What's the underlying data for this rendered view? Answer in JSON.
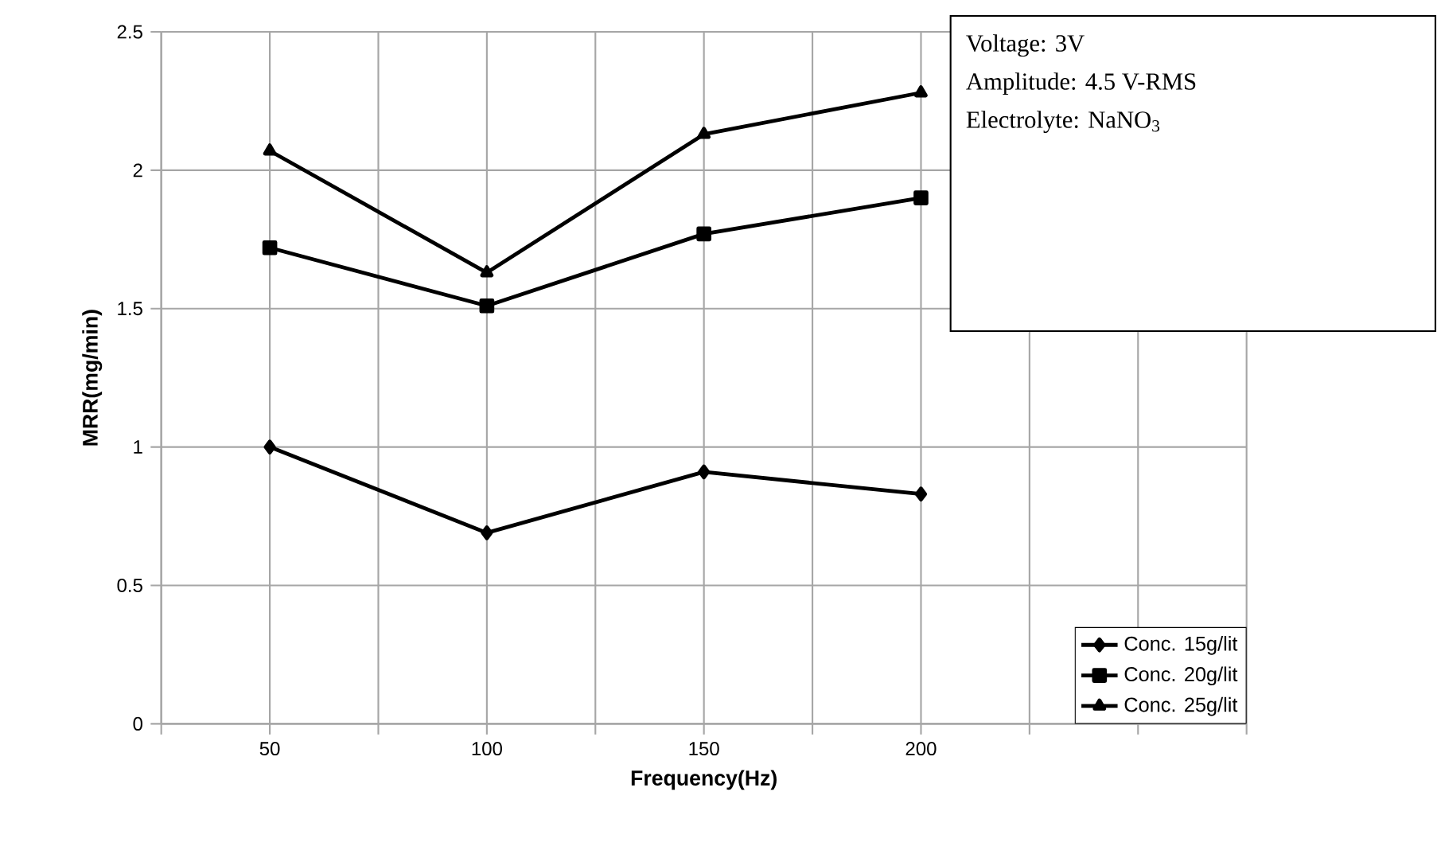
{
  "chart_data": {
    "type": "line",
    "xlabel": "Frequency(Hz)",
    "ylabel": "MRR(mg/min)",
    "x": [
      50,
      100,
      150,
      200
    ],
    "series": [
      {
        "name": "Conc. 15g/lit",
        "color": "#000000",
        "marker": "diamond",
        "values": [
          1.0,
          0.69,
          0.91,
          0.83
        ]
      },
      {
        "name": "Conc. 20g/lit",
        "color": "#000000",
        "marker": "square",
        "values": [
          1.72,
          1.51,
          1.77,
          1.9
        ]
      },
      {
        "name": "Conc. 25g/lit",
        "color": "#000000",
        "marker": "triangle",
        "values": [
          2.07,
          1.63,
          2.13,
          2.28
        ]
      }
    ],
    "xlim": [
      25,
      275
    ],
    "xticks": [
      {
        "value": 25,
        "label": null
      },
      50,
      {
        "value": 75,
        "label": null
      },
      100,
      {
        "value": 125,
        "label": null
      },
      150,
      {
        "value": 175,
        "label": null
      },
      200,
      {
        "value": 225,
        "label": null
      },
      {
        "value": 250,
        "label": null
      },
      {
        "value": 275,
        "label": null
      }
    ],
    "ylim": [
      0,
      2.5
    ],
    "yticks": [
      0,
      0.5,
      1,
      1.5,
      2,
      2.5
    ],
    "grid": true,
    "legend": "bottom right",
    "line_style": "solid",
    "annotations": [
      "Voltage: 3V",
      "Amplitude: 4.5 V-RMS",
      "Electrolyte:  NaNO$_{3}$"
    ]
  }
}
